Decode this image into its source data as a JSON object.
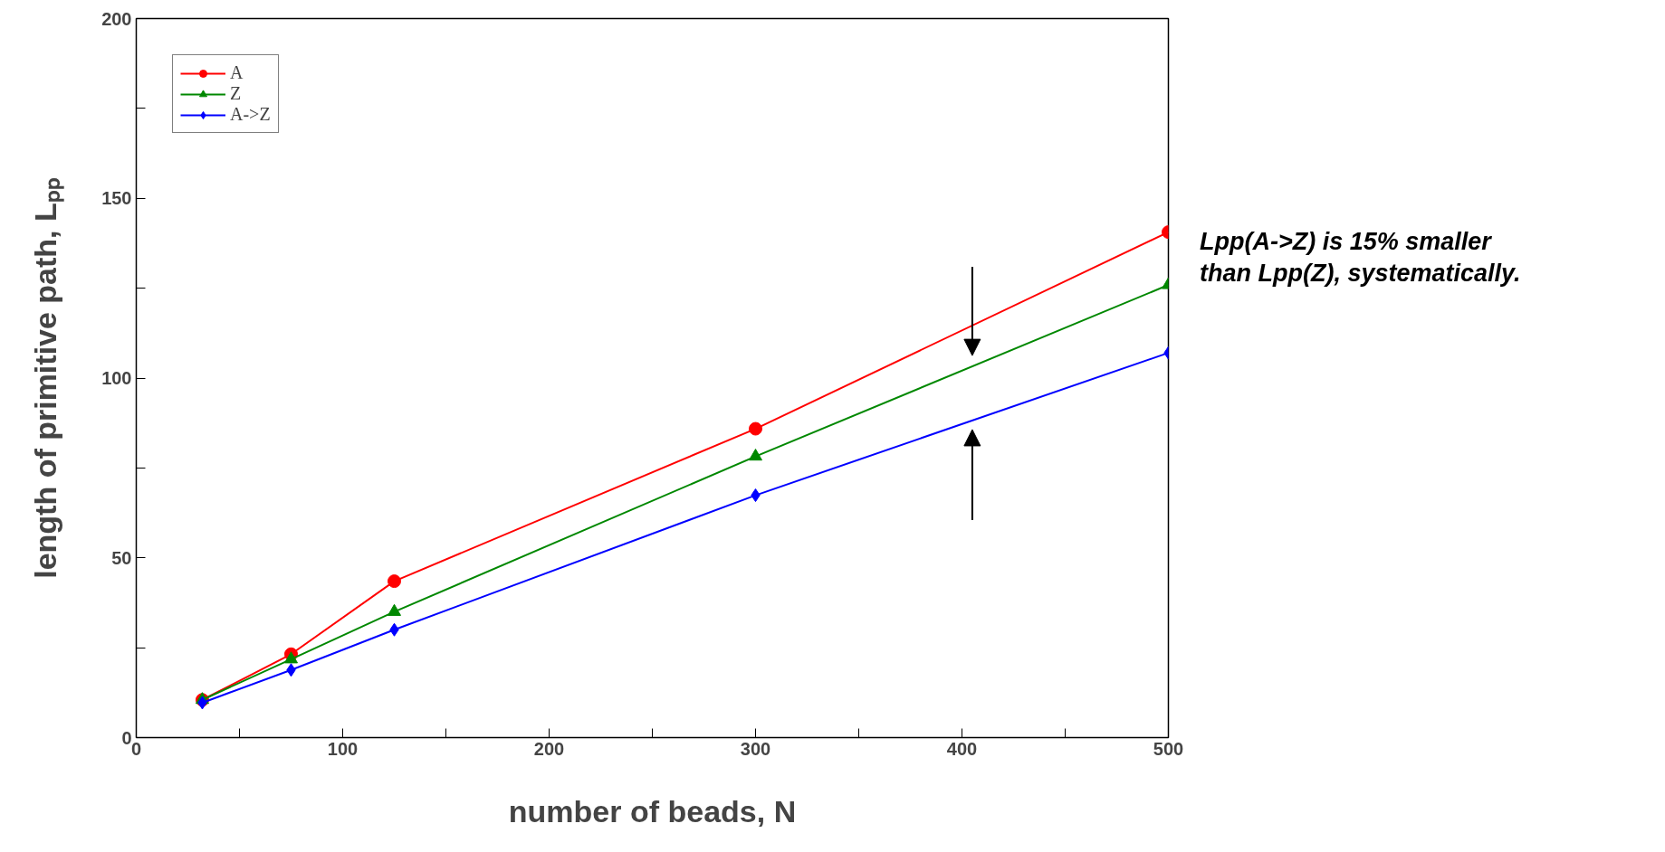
{
  "chart_data": {
    "type": "line",
    "xlabel": "number of beads, N",
    "ylabel": "length of primitive path, Lₚₚ",
    "x": [
      32,
      75,
      125,
      300,
      500
    ],
    "series": [
      {
        "name": "A",
        "color": "#ff0000",
        "values": [
          10.5,
          23.2,
          43.5,
          85.9,
          140.6
        ],
        "marker": "circle"
      },
      {
        "name": "Z",
        "color": "#008800",
        "values": [
          10.5,
          21.8,
          35,
          78.2,
          125.9
        ],
        "marker": "triangle"
      },
      {
        "name": "A->Z",
        "color": "#0000ff",
        "values": [
          9.7,
          18.8,
          30,
          67.4,
          107
        ],
        "marker": "diamond"
      }
    ],
    "xlim": [
      0,
      500
    ],
    "ylim": [
      0,
      200
    ],
    "xticks": [
      0,
      {
        "value": 50,
        "label": null
      },
      100,
      {
        "value": 150,
        "label": null
      },
      200,
      {
        "value": 250,
        "label": null
      },
      300,
      {
        "value": 350,
        "label": null
      },
      400,
      {
        "value": 450,
        "label": null
      },
      500
    ],
    "yticks": [
      0,
      {
        "value": 25,
        "label": null
      },
      50,
      {
        "value": 75,
        "label": null
      },
      100,
      {
        "value": 125,
        "label": null
      },
      150,
      {
        "value": 175,
        "label": null
      },
      200
    ],
    "grid": false,
    "legend": "top left",
    "annotations": [
      "Lpp(A->Z) is 15% smaller\nthan Lpp(Z), systematically."
    ]
  }
}
